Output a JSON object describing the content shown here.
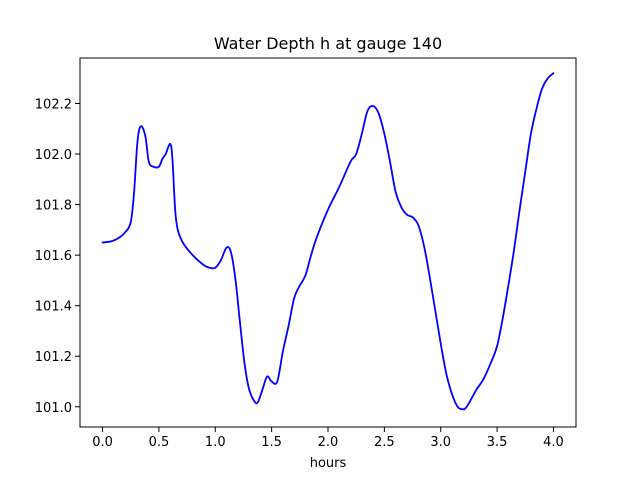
{
  "chart_data": {
    "type": "line",
    "title": "Water Depth h at gauge 140",
    "xlabel": "hours",
    "ylabel": "",
    "xlim": [
      -0.2,
      4.2
    ],
    "ylim": [
      100.92,
      102.38
    ],
    "xticks": [
      0.0,
      0.5,
      1.0,
      1.5,
      2.0,
      2.5,
      3.0,
      3.5,
      4.0
    ],
    "xtick_labels": [
      "0.0",
      "0.5",
      "1.0",
      "1.5",
      "2.0",
      "2.5",
      "3.0",
      "3.5",
      "4.0"
    ],
    "yticks": [
      101.0,
      101.2,
      101.4,
      101.6,
      101.8,
      102.0,
      102.2
    ],
    "ytick_labels": [
      "101.0",
      "101.2",
      "101.4",
      "101.6",
      "101.8",
      "102.0",
      "102.2"
    ],
    "grid": false,
    "series": [
      {
        "color": "#0000ff",
        "x": [
          0.0,
          0.08,
          0.15,
          0.2,
          0.25,
          0.28,
          0.31,
          0.34,
          0.38,
          0.41,
          0.45,
          0.5,
          0.53,
          0.56,
          0.6,
          0.62,
          0.65,
          0.7,
          0.8,
          0.9,
          0.95,
          1.0,
          1.05,
          1.1,
          1.14,
          1.18,
          1.22,
          1.26,
          1.3,
          1.35,
          1.38,
          1.42,
          1.46,
          1.5,
          1.55,
          1.6,
          1.65,
          1.7,
          1.75,
          1.8,
          1.85,
          1.9,
          2.0,
          2.1,
          2.2,
          2.25,
          2.3,
          2.35,
          2.4,
          2.45,
          2.5,
          2.55,
          2.6,
          2.65,
          2.7,
          2.75,
          2.8,
          2.85,
          2.9,
          3.0,
          3.05,
          3.1,
          3.15,
          3.2,
          3.23,
          3.27,
          3.32,
          3.38,
          3.45,
          3.5,
          3.55,
          3.6,
          3.65,
          3.7,
          3.75,
          3.8,
          3.85,
          3.9,
          3.95,
          4.0
        ],
        "y": [
          101.65,
          101.655,
          101.67,
          101.69,
          101.73,
          101.85,
          102.05,
          102.11,
          102.07,
          101.97,
          101.95,
          101.95,
          101.98,
          102.0,
          102.04,
          101.98,
          101.75,
          101.66,
          101.6,
          101.56,
          101.55,
          101.55,
          101.58,
          101.63,
          101.61,
          101.5,
          101.33,
          101.17,
          101.07,
          101.02,
          101.02,
          101.07,
          101.12,
          101.1,
          101.1,
          101.22,
          101.32,
          101.43,
          101.48,
          101.52,
          101.6,
          101.67,
          101.78,
          101.87,
          101.97,
          102.0,
          102.08,
          102.17,
          102.19,
          102.16,
          102.08,
          101.97,
          101.85,
          101.79,
          101.76,
          101.75,
          101.72,
          101.64,
          101.52,
          101.25,
          101.13,
          101.05,
          101.0,
          100.99,
          101.0,
          101.03,
          101.07,
          101.11,
          101.18,
          101.24,
          101.35,
          101.48,
          101.62,
          101.78,
          101.93,
          102.08,
          102.18,
          102.26,
          102.3,
          102.32
        ]
      }
    ]
  }
}
